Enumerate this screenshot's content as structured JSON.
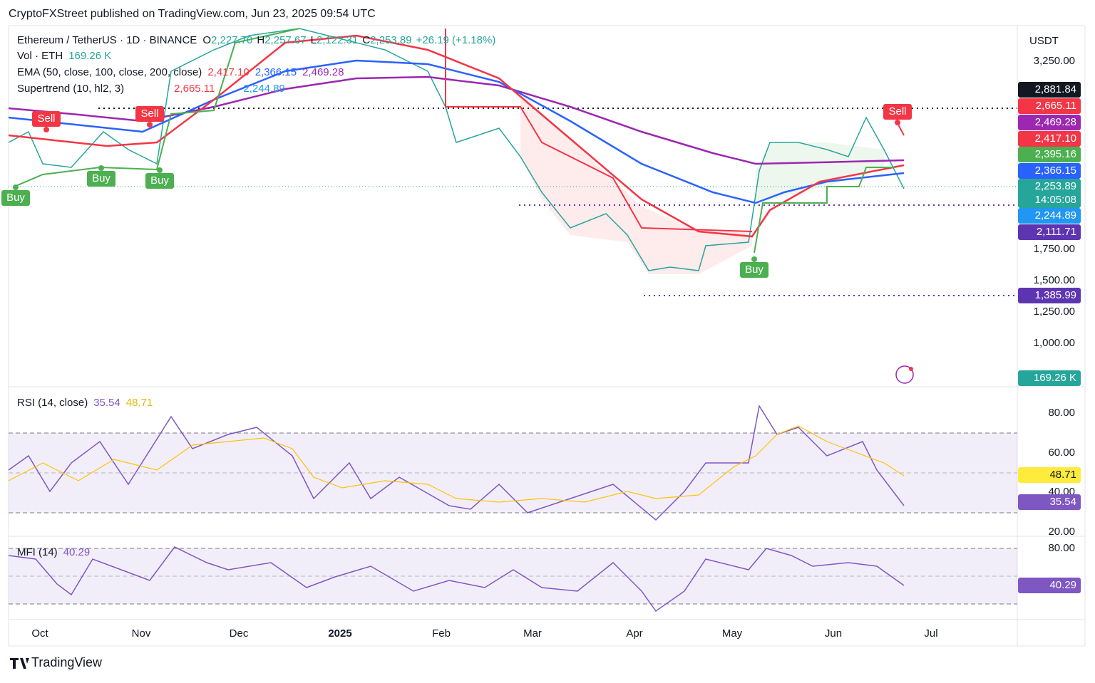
{
  "header": "CryptoFXStreet published on TradingView.com, Jun 23, 2025 09:54 UTC",
  "legend": {
    "symbol": "Ethereum / TetherUS · 1D · BINANCE",
    "ohlc": [
      "O",
      "2,227.70",
      "H",
      "2,257.67",
      "L",
      "2,122.31",
      "C",
      "2,253.89"
    ],
    "change": "+26.19 (+1.18%)",
    "vol": [
      "Vol · ETH",
      "169.26 K"
    ],
    "ema": [
      "EMA (50, close, 100, close, 200, close)",
      "2,417.10",
      "2,366.15",
      "2,469.28"
    ],
    "supertrend": [
      "Supertrend (10, hl2, 3)",
      "2,665.11",
      "2,244.89"
    ]
  },
  "currency": "USDT",
  "price_axis": [
    "3,250.00",
    "1,750.00",
    "1,500.00",
    "1,250.00",
    "1,000.00"
  ],
  "price_tags": [
    {
      "text": "2,881.84",
      "color": "#131722"
    },
    {
      "text": "2,665.11",
      "color": "#f23645"
    },
    {
      "text": "2,469.28",
      "color": "#9c27b0"
    },
    {
      "text": "2,417.10",
      "color": "#f23645"
    },
    {
      "text": "2,395.16",
      "color": "#4caf50"
    },
    {
      "text": "2,366.15",
      "color": "#2962ff"
    },
    {
      "text": "2,253.89",
      "color": "#26a69a"
    },
    {
      "text": "14:05:08",
      "color": "#26a69a"
    },
    {
      "text": "2,244.89",
      "color": "#2196f3"
    },
    {
      "text": "2,111.71",
      "color": "#5e35b1"
    },
    {
      "text": "1,385.99",
      "color": "#5e35b1"
    },
    {
      "text": "169.26 K",
      "color": "#26a69a"
    }
  ],
  "signals": [
    "Sell",
    "Sell",
    "Sell",
    "Buy",
    "Buy",
    "Buy",
    "Buy"
  ],
  "rsi": {
    "title": "RSI (14, close)",
    "values": [
      "35.54",
      "48.71"
    ],
    "axis": [
      "80.00",
      "60.00",
      "40.00",
      "20.00"
    ],
    "tags": [
      {
        "text": "48.71",
        "color": "#ffeb3b"
      },
      {
        "text": "35.54",
        "color": "#7e57c2"
      }
    ]
  },
  "mfi": {
    "title": "MFI (14)",
    "value": "40.29",
    "axis": [
      "80.00"
    ],
    "tag": {
      "text": "40.29",
      "color": "#7e57c2"
    }
  },
  "time_axis": [
    "Oct",
    "Nov",
    "Dec",
    "2025",
    "Feb",
    "Mar",
    "Apr",
    "May",
    "Jun",
    "Jul"
  ],
  "brand": "TradingView"
}
